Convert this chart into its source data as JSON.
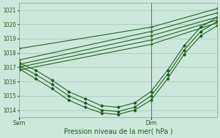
{
  "title": "",
  "xlabel": "Pression niveau de la mer( hPa )",
  "ylabel": "",
  "bg_color": "#cce8dc",
  "grid_color": "#aacfbf",
  "line_color": "#1a5c1a",
  "ax_color": "#1a5c1a",
  "ylim": [
    1013.5,
    1021.5
  ],
  "xlim": [
    0,
    48
  ],
  "yticks": [
    1014,
    1015,
    1016,
    1017,
    1018,
    1019,
    1020,
    1021
  ],
  "xtick_positions": [
    0,
    32
  ],
  "xtick_labels": [
    "Sam",
    "Dim"
  ],
  "vline_x": 32,
  "lines": [
    {
      "x": [
        0,
        32,
        48
      ],
      "y": [
        1018.3,
        1019.8,
        1021.1
      ],
      "dense": false
    },
    {
      "x": [
        0,
        32,
        48
      ],
      "y": [
        1017.5,
        1019.5,
        1020.8
      ],
      "dense": false
    },
    {
      "x": [
        0,
        32,
        48
      ],
      "y": [
        1017.2,
        1019.2,
        1020.5
      ],
      "dense": false
    },
    {
      "x": [
        0,
        32,
        48
      ],
      "y": [
        1017.0,
        1018.9,
        1020.3
      ],
      "dense": false
    },
    {
      "x": [
        0,
        32,
        48
      ],
      "y": [
        1016.8,
        1018.6,
        1020.1
      ],
      "dense": false
    },
    {
      "x": [
        0,
        4,
        8,
        12,
        16,
        20,
        24,
        28,
        32,
        36,
        40,
        44,
        48
      ],
      "y": [
        1017.3,
        1016.8,
        1016.1,
        1015.3,
        1014.8,
        1014.3,
        1014.2,
        1014.5,
        1015.3,
        1016.8,
        1018.5,
        1019.8,
        1020.5
      ],
      "dense": true
    },
    {
      "x": [
        0,
        4,
        8,
        12,
        16,
        20,
        24,
        28,
        32,
        36,
        40,
        44,
        48
      ],
      "y": [
        1017.1,
        1016.5,
        1015.8,
        1015.0,
        1014.5,
        1014.0,
        1013.9,
        1014.2,
        1015.0,
        1016.5,
        1018.2,
        1019.5,
        1020.2
      ],
      "dense": true
    },
    {
      "x": [
        0,
        4,
        8,
        12,
        16,
        20,
        24,
        28,
        32,
        36,
        40,
        44,
        48
      ],
      "y": [
        1016.9,
        1016.2,
        1015.5,
        1014.7,
        1014.2,
        1013.8,
        1013.7,
        1014.0,
        1014.7,
        1016.2,
        1017.9,
        1019.2,
        1019.9
      ],
      "dense": true
    }
  ]
}
